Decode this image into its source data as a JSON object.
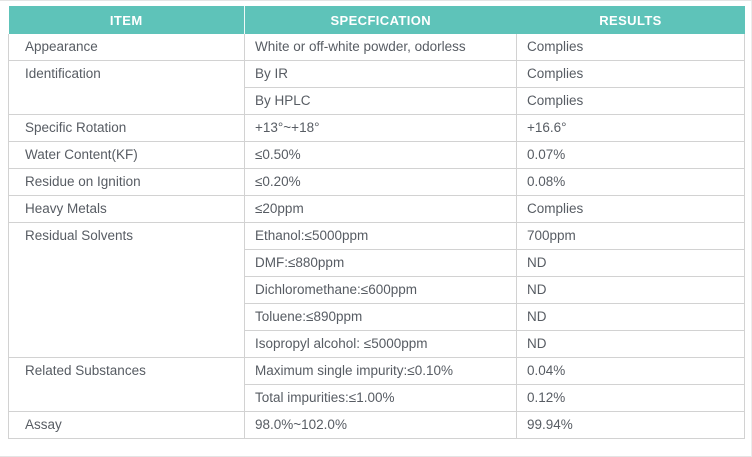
{
  "table": {
    "columns": [
      "ITEM",
      "SPECFICATION",
      "RESULTS"
    ],
    "rows": [
      {
        "item": "Appearance",
        "spec": "White or off-white powder, odorless",
        "result": "Complies"
      },
      {
        "item": "Identification",
        "spec": "By IR",
        "result": "Complies"
      },
      {
        "spec": "By HPLC",
        "result": "Complies"
      },
      {
        "item": "Specific Rotation",
        "spec": "+13°~+18°",
        "result": "+16.6°"
      },
      {
        "item": "Water Content(KF)",
        "spec": "≤0.50%",
        "result": "0.07%"
      },
      {
        "item": "Residue on Ignition",
        "spec": "≤0.20%",
        "result": "0.08%"
      },
      {
        "item": "Heavy Metals",
        "spec": "≤20ppm",
        "result": "Complies"
      },
      {
        "item": "Residual Solvents",
        "spec": "Ethanol:≤5000ppm",
        "result": "700ppm"
      },
      {
        "spec": "DMF:≤880ppm",
        "result": "ND"
      },
      {
        "spec": "Dichloromethane:≤600ppm",
        "result": "ND"
      },
      {
        "spec": "Toluene:≤890ppm",
        "result": "ND"
      },
      {
        "spec": "Isopropyl alcohol: ≤5000ppm",
        "result": "ND"
      },
      {
        "item": "Related Substances",
        "spec": "Maximum single impurity:≤0.10%",
        "result": "0.04%"
      },
      {
        "spec": "Total impurities:≤1.00%",
        "result": "0.12%"
      },
      {
        "item": "Assay",
        "spec": "98.0%~102.0%",
        "result": "99.94%"
      }
    ]
  },
  "colors": {
    "header_bg": "#5ec3b9",
    "header_text": "#ffffff",
    "body_text": "#575c63",
    "border": "#d2d2d2"
  }
}
